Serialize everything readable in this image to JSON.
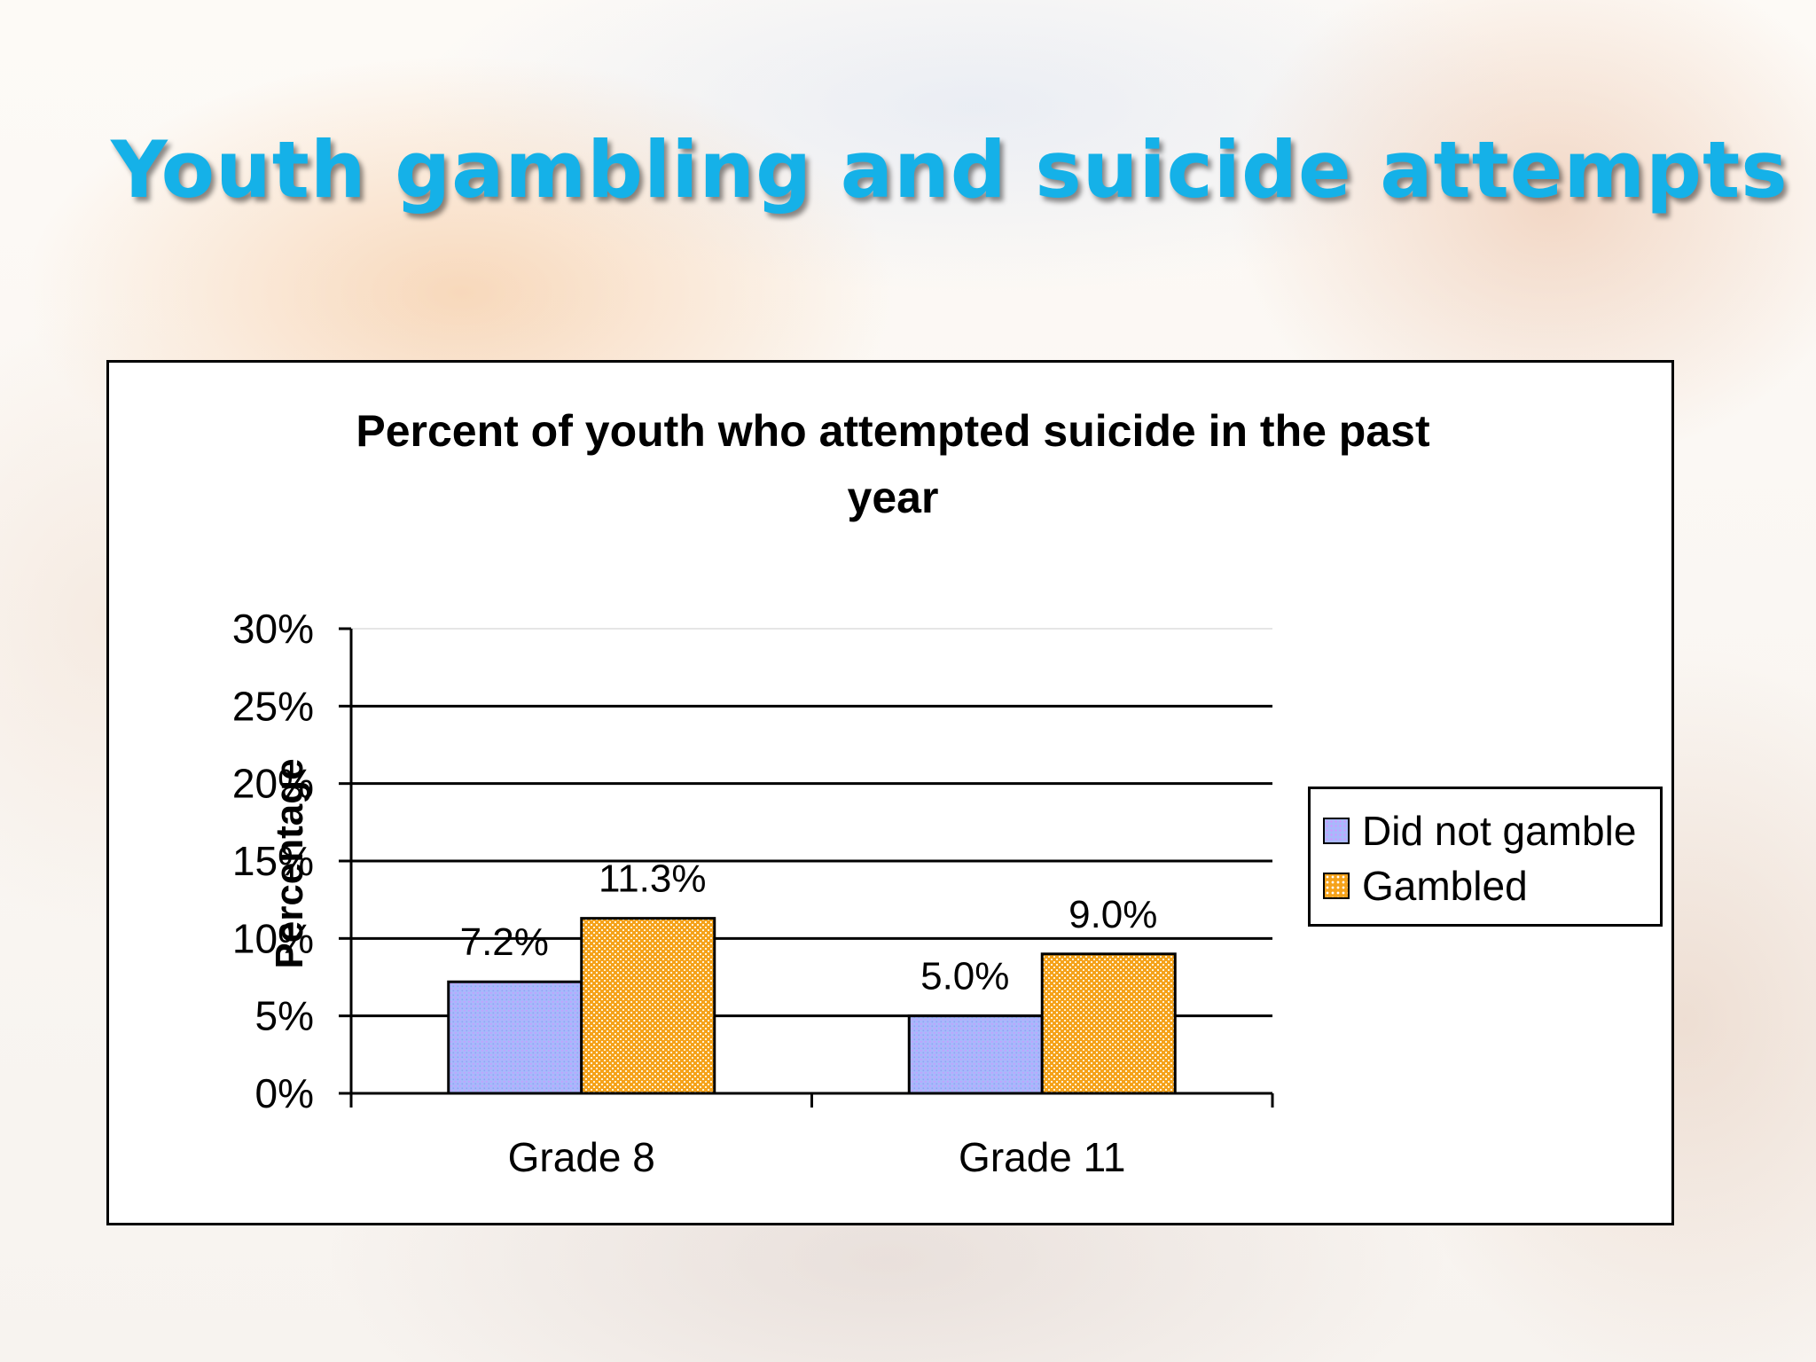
{
  "slide": {
    "title": "Youth gambling and suicide attempts"
  },
  "chart_data": {
    "type": "bar",
    "title_lines": [
      "Percent of youth who attempted suicide in the past",
      "year"
    ],
    "ylabel": "Percentage",
    "xlabel": "",
    "categories": [
      "Grade 8",
      "Grade 11"
    ],
    "ylim": [
      0,
      30
    ],
    "yticks": [
      0,
      5,
      10,
      15,
      20,
      25,
      30
    ],
    "ytick_labels": [
      "0%",
      "5%",
      "10%",
      "15%",
      "20%",
      "25%",
      "30%"
    ],
    "series": [
      {
        "name": "Did not gamble",
        "values": [
          7.2,
          5.0
        ],
        "labels": [
          "7.2%",
          "5.0%"
        ],
        "color": "#a9b8fb"
      },
      {
        "name": "Gambled",
        "values": [
          11.3,
          9.0
        ],
        "labels": [
          "11.3%",
          "9.0%"
        ],
        "color": "#f5a21a"
      }
    ],
    "grid": true,
    "legend_position": "right"
  }
}
